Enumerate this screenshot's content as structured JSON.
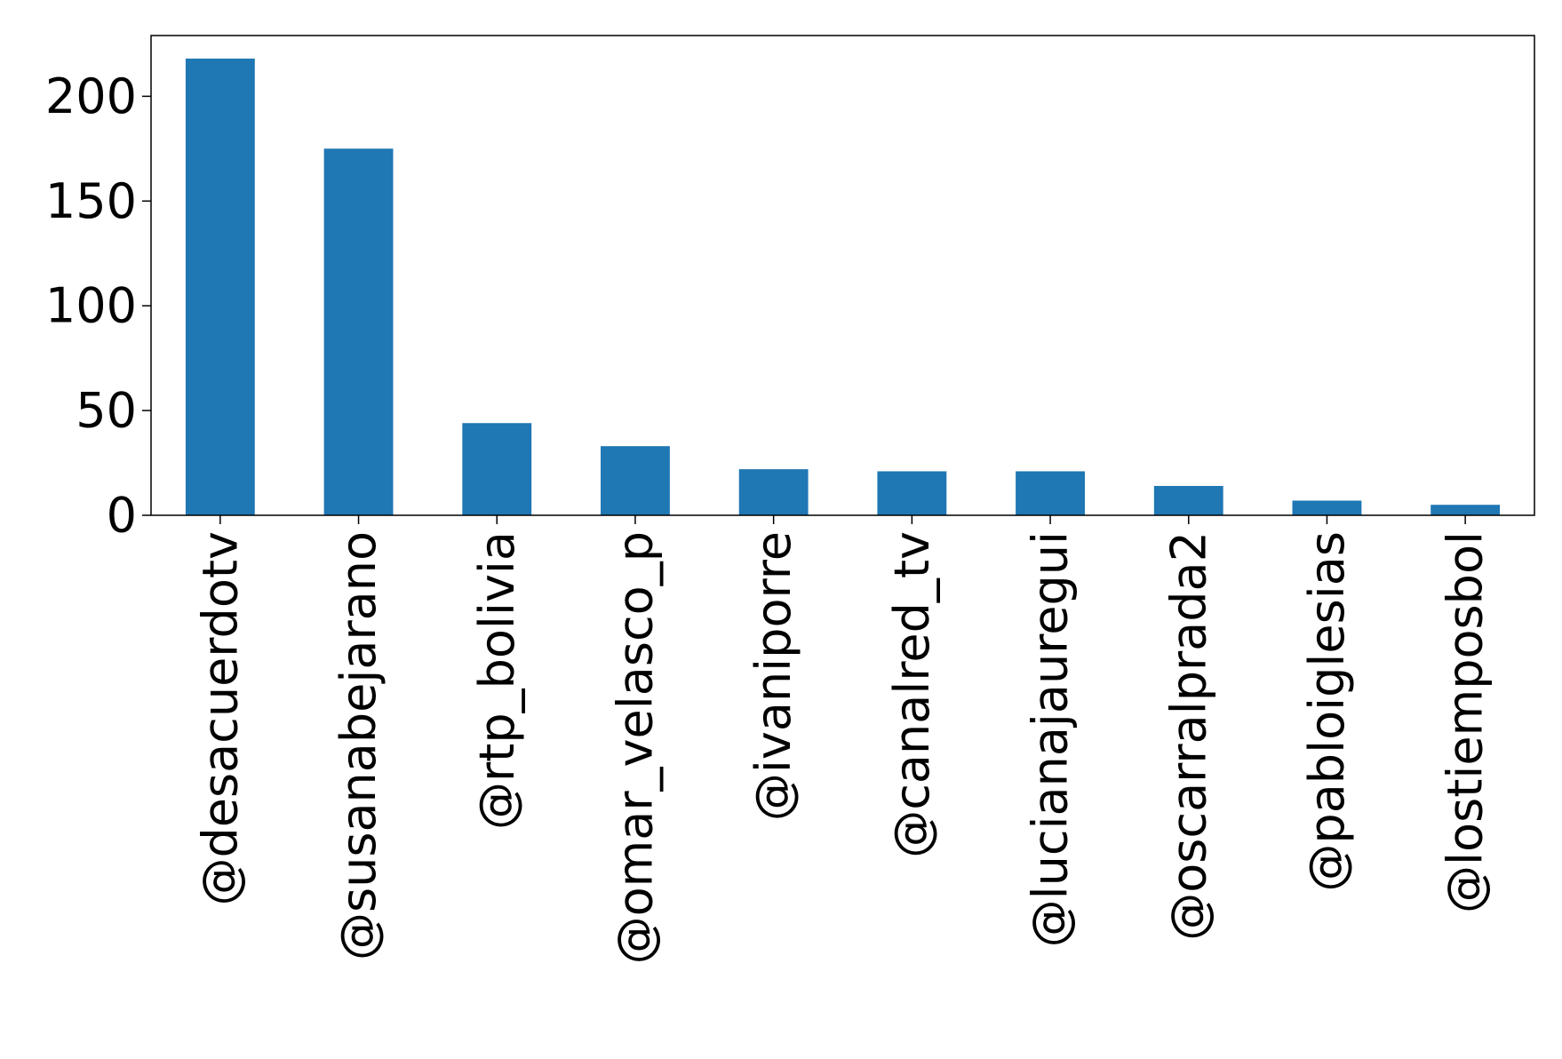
{
  "chart_data": {
    "type": "bar",
    "title": "",
    "xlabel": "",
    "ylabel": "",
    "categories": [
      "@desacuerdotv",
      "@susanabejarano",
      "@rtp_bolivia",
      "@omar_velasco_p",
      "@ivaniporre",
      "@canalred_tv",
      "@lucianajauregui",
      "@oscarralprada2",
      "@pabloiglesias",
      "@lostiemposbol"
    ],
    "values": [
      218,
      175,
      44,
      33,
      22,
      21,
      21,
      14,
      7,
      5
    ],
    "ylim": [
      0,
      229
    ],
    "yticks": [
      0,
      50,
      100,
      150,
      200
    ],
    "grid": false,
    "legend": "none",
    "bar_color": "#1f77b4"
  }
}
